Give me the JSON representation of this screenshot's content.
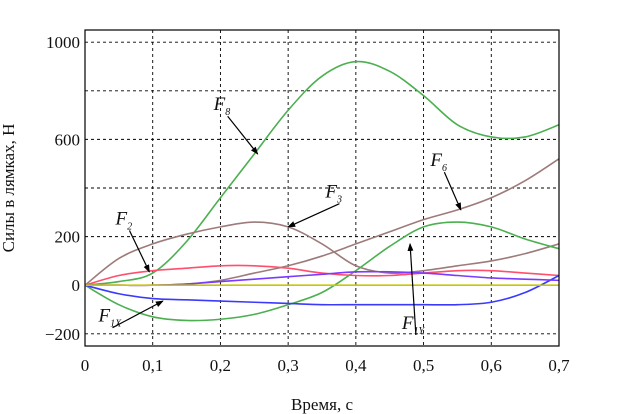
{
  "chart_data": {
    "type": "line",
    "xlabel": "Время, с",
    "ylabel": "Силы в лямках, Н",
    "xlim": [
      0,
      0.7
    ],
    "ylim": [
      -250,
      1050
    ],
    "grid": true,
    "x_ticks": [
      {
        "value": 0,
        "label": "0"
      },
      {
        "value": 0.1,
        "label": "0,1"
      },
      {
        "value": 0.2,
        "label": "0,2"
      },
      {
        "value": 0.3,
        "label": "0,3"
      },
      {
        "value": 0.4,
        "label": "0,4"
      },
      {
        "value": 0.5,
        "label": "0,5"
      },
      {
        "value": 0.6,
        "label": "0,6"
      },
      {
        "value": 0.7,
        "label": "0,7"
      }
    ],
    "y_ticks": [
      {
        "value": -200,
        "label": "−200"
      },
      {
        "value": 0,
        "label": "0"
      },
      {
        "value": 200,
        "label": "200"
      },
      {
        "value": 600,
        "label": "600"
      },
      {
        "value": 1000,
        "label": "1000"
      }
    ],
    "y_gridlines": [
      -200,
      0,
      200,
      400,
      600,
      800,
      1000
    ],
    "series": [
      {
        "color": "#4caf50",
        "x": [
          0,
          0.05,
          0.1,
          0.15,
          0.2,
          0.25,
          0.3,
          0.35,
          0.4,
          0.45,
          0.5,
          0.55,
          0.6,
          0.65,
          0.7
        ],
        "y": [
          0,
          15,
          50,
          180,
          360,
          540,
          720,
          860,
          920,
          880,
          780,
          660,
          610,
          610,
          660
        ]
      },
      {
        "color": "#9e7b7b",
        "x": [
          0,
          0.05,
          0.1,
          0.15,
          0.2,
          0.25,
          0.3,
          0.35,
          0.4,
          0.45,
          0.5,
          0.55,
          0.6,
          0.65,
          0.7
        ],
        "y": [
          0,
          110,
          170,
          210,
          240,
          260,
          240,
          170,
          80,
          50,
          60,
          80,
          100,
          130,
          170
        ]
      },
      {
        "color": "#9e7b7b",
        "x": [
          0,
          0.05,
          0.1,
          0.15,
          0.2,
          0.25,
          0.3,
          0.35,
          0.4,
          0.45,
          0.5,
          0.55,
          0.6,
          0.65,
          0.7
        ],
        "y": [
          0,
          0,
          0,
          5,
          20,
          50,
          80,
          120,
          170,
          220,
          270,
          310,
          360,
          430,
          520
        ]
      },
      {
        "color": "#4caf50",
        "x": [
          0,
          0.05,
          0.1,
          0.15,
          0.2,
          0.25,
          0.3,
          0.35,
          0.4,
          0.45,
          0.5,
          0.55,
          0.6,
          0.65,
          0.7
        ],
        "y": [
          0,
          -80,
          -130,
          -145,
          -140,
          -120,
          -80,
          -30,
          60,
          160,
          240,
          260,
          240,
          190,
          150
        ]
      },
      {
        "color": "#ff4f6d",
        "x": [
          0,
          0.05,
          0.1,
          0.15,
          0.2,
          0.25,
          0.3,
          0.35,
          0.4,
          0.45,
          0.5,
          0.55,
          0.6,
          0.65,
          0.7
        ],
        "y": [
          0,
          40,
          60,
          70,
          80,
          80,
          70,
          50,
          40,
          40,
          50,
          60,
          60,
          50,
          40
        ]
      },
      {
        "color": "#3a3aff",
        "x": [
          0,
          0.05,
          0.1,
          0.15,
          0.2,
          0.25,
          0.3,
          0.35,
          0.4,
          0.45,
          0.5,
          0.55,
          0.6,
          0.65,
          0.7
        ],
        "y": [
          0,
          -35,
          -55,
          -60,
          -65,
          -70,
          -75,
          -80,
          -80,
          -80,
          -80,
          -80,
          -70,
          -30,
          40
        ]
      },
      {
        "color": "#7a3aff",
        "x": [
          0,
          0.05,
          0.1,
          0.15,
          0.2,
          0.25,
          0.3,
          0.35,
          0.4,
          0.45,
          0.5,
          0.55,
          0.6,
          0.65,
          0.7
        ],
        "y": [
          0,
          0,
          0,
          5,
          15,
          25,
          35,
          45,
          55,
          55,
          50,
          40,
          30,
          25,
          20
        ]
      },
      {
        "color": "#c8c800",
        "x": [
          0,
          0.1,
          0.2,
          0.3,
          0.4,
          0.5,
          0.6,
          0.7
        ],
        "y": [
          0,
          0,
          0,
          0,
          0,
          0,
          0,
          0
        ]
      }
    ],
    "annotations": [
      {
        "text": "F",
        "sub": "8",
        "x": 0.19,
        "y": 720,
        "arrow_to": {
          "x": 0.255,
          "y": 540
        }
      },
      {
        "text": "F",
        "sub": "3",
        "x": 0.355,
        "y": 360,
        "arrow_to": {
          "x": 0.3,
          "y": 240
        }
      },
      {
        "text": "F",
        "sub": "6",
        "x": 0.51,
        "y": 490,
        "arrow_to": {
          "x": 0.555,
          "y": 310
        }
      },
      {
        "text": "F",
        "sub": "2",
        "x": 0.045,
        "y": 250,
        "arrow_to": {
          "x": 0.095,
          "y": 55
        }
      },
      {
        "text": "F",
        "sub": "1X",
        "x": 0.02,
        "y": -150,
        "arrow_to": {
          "x": 0.115,
          "y": -65
        }
      },
      {
        "text": "F",
        "sub": "1Y",
        "x": 0.468,
        "y": -180,
        "arrow_to": {
          "x": 0.48,
          "y": 170
        }
      }
    ]
  }
}
